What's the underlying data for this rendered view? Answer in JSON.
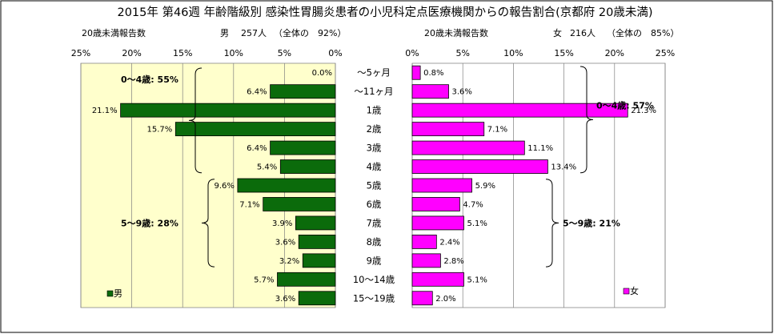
{
  "chart_data": {
    "type": "bar",
    "title": "2015年 第46週 年齢階級別 感染性胃腸炎患者の小児科定点医療機関からの報告割合(京都府 20歳未満)",
    "categories": [
      "～5ヶ月",
      "～11ヶ月",
      "1歳",
      "2歳",
      "3歳",
      "4歳",
      "5歳",
      "6歳",
      "7歳",
      "8歳",
      "9歳",
      "10～14歳",
      "15～19歳"
    ],
    "xlim": [
      0,
      25
    ],
    "xticks": [
      "25%",
      "20%",
      "15%",
      "10%",
      "5%",
      "0%"
    ],
    "xticks_right": [
      "0%",
      "5%",
      "10%",
      "15%",
      "20%",
      "25%"
    ],
    "series": [
      {
        "name": "男",
        "side": "left",
        "color": "#0b6b0b",
        "header_label": "20歳未満報告数",
        "header_sex": "男",
        "header_count": "257人",
        "header_share": "（全体の　92%）",
        "values": [
          0.0,
          6.4,
          21.1,
          15.7,
          6.4,
          5.4,
          9.6,
          7.1,
          3.9,
          3.6,
          3.2,
          5.7,
          3.6
        ],
        "labels": [
          "0.0%",
          "6.4%",
          "21.1%",
          "15.7%",
          "6.4%",
          "5.4%",
          "9.6%",
          "7.1%",
          "3.9%",
          "3.6%",
          "3.2%",
          "5.7%",
          "3.6%"
        ],
        "groups": [
          {
            "label": "0～4歳: 55%",
            "from": 0,
            "to": 5
          },
          {
            "label": "5～9歳: 28%",
            "from": 6,
            "to": 10
          }
        ]
      },
      {
        "name": "女",
        "side": "right",
        "color": "#ff00ff",
        "header_label": "20歳未満報告数",
        "header_sex": "女",
        "header_count": "216人",
        "header_share": "（全体の　85%）",
        "values": [
          0.8,
          3.6,
          21.3,
          7.1,
          11.1,
          13.4,
          5.9,
          4.7,
          5.1,
          2.4,
          2.8,
          5.1,
          2.0
        ],
        "labels": [
          "0.8%",
          "3.6%",
          "21.3%",
          "7.1%",
          "11.1%",
          "13.4%",
          "5.9%",
          "4.7%",
          "5.1%",
          "2.4%",
          "2.8%",
          "5.1%",
          "2.0%"
        ],
        "groups": [
          {
            "label": "0～4歳: 57%",
            "from": 0,
            "to": 5
          },
          {
            "label": "5～9歳: 21%",
            "from": 6,
            "to": 10
          }
        ]
      }
    ],
    "left_panel_bg": "#ffffcc",
    "right_panel_bg": "#ffffff",
    "grid": true
  }
}
